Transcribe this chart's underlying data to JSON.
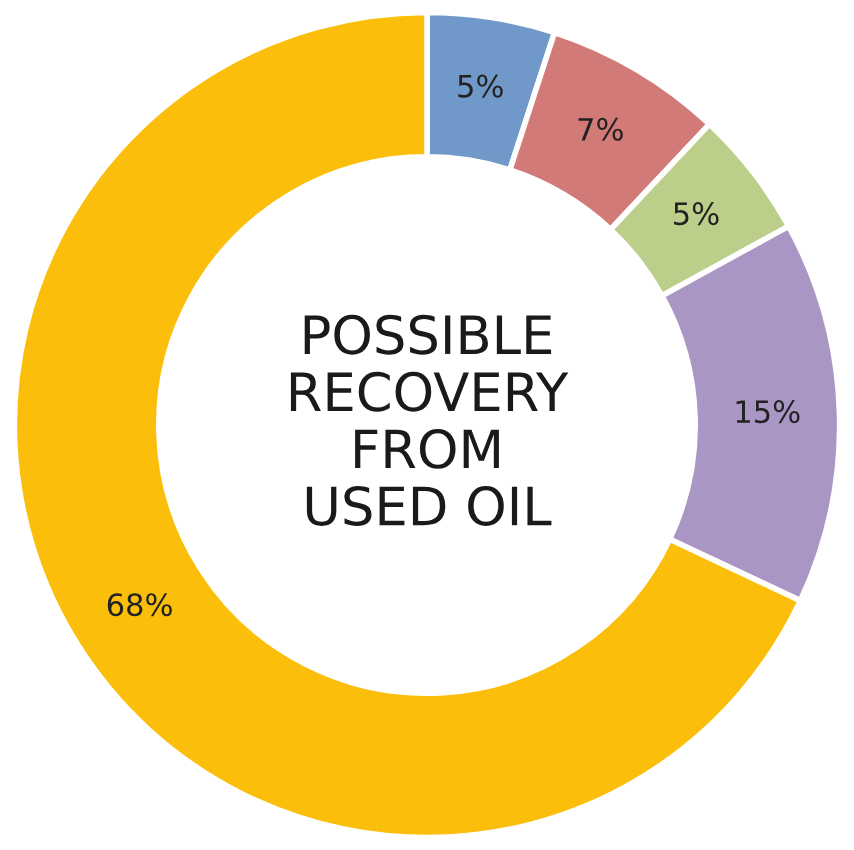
{
  "chart_data": {
    "type": "donut",
    "title": "POSSIBLE\nRECOVERY\nFROM\nUSED OIL",
    "categories": [
      null,
      null,
      null,
      null,
      null
    ],
    "values": [
      5,
      7,
      5,
      15,
      68
    ],
    "colors": [
      "#7099c9",
      "#d27a78",
      "#bccf8a",
      "#aa96c4",
      "#fbbf0b"
    ],
    "value_labels": [
      "5%",
      "7%",
      "5%",
      "15%",
      "68%"
    ]
  }
}
